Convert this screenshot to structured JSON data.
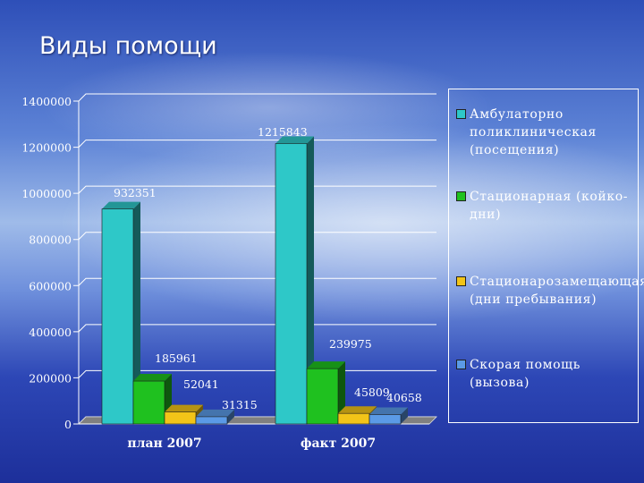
{
  "title": "Виды помощи",
  "chart_data": {
    "type": "bar",
    "categories": [
      "план 2007",
      "факт 2007"
    ],
    "y_ticks": [
      "0",
      "200000",
      "400000",
      "600000",
      "800000",
      "1000000",
      "1200000",
      "1400000"
    ],
    "ylim": [
      0,
      1400000
    ],
    "grid": true,
    "legend_position": "right",
    "series": [
      {
        "name": "Амбулаторно поликлиническая (посещения)",
        "values": [
          932351,
          1215843
        ],
        "labels": [
          "932351",
          "1215843"
        ],
        "color": "#2ec8c8"
      },
      {
        "name": "Стационарная (койко-дни)",
        "values": [
          185961,
          239975
        ],
        "labels": [
          "185961",
          "239975"
        ],
        "color": "#1fc11f"
      },
      {
        "name": "Стационарозамещающая (дни пребывания)",
        "values": [
          52041,
          45809
        ],
        "labels": [
          "52041",
          "45809"
        ],
        "color": "#f2c418"
      },
      {
        "name": "Скорая помощь (вызова)",
        "values": [
          31315,
          40658
        ],
        "labels": [
          "31315",
          "40658"
        ],
        "color": "#5b9ae6"
      }
    ]
  },
  "legend": [
    {
      "label": "Амбулаторно поликлиническая (посещения)",
      "color": "#2ec8c8"
    },
    {
      "label": "Стационарная (койко-дни)",
      "color": "#1fc11f"
    },
    {
      "label": "Стационарозамещающая (дни пребывания)",
      "color": "#f2c418"
    },
    {
      "label": "Скорая помощь (вызова)",
      "color": "#5b9ae6"
    }
  ]
}
